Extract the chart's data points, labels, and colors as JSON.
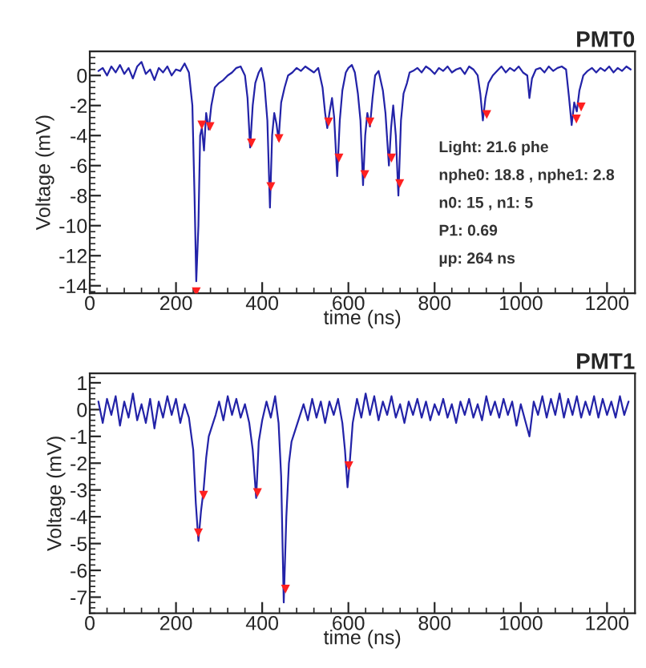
{
  "chart_data": [
    {
      "type": "line",
      "title": "PMT0",
      "xlabel": "time (ns)",
      "ylabel": "Voltage (mV)",
      "xlim": [
        0,
        1265
      ],
      "ylim": [
        -14.5,
        1.6
      ],
      "xticks": [
        0,
        200,
        400,
        600,
        800,
        1000,
        1200
      ],
      "yticks": [
        -14,
        -12,
        -10,
        -8,
        -6,
        -4,
        -2,
        0
      ],
      "grid": false,
      "legend": false,
      "annotations": [
        "Light: 21.6 phe",
        "nphe0: 18.8 , nphe1: 2.8",
        "n0: 15 , n1: 5",
        "P1: 0.69",
        "µp: 264 ns"
      ],
      "series": [
        {
          "color": "#2323a8",
          "marker": "none",
          "line_style": "solid",
          "x": [
            20,
            30,
            40,
            50,
            60,
            70,
            80,
            90,
            100,
            110,
            120,
            130,
            140,
            150,
            160,
            170,
            180,
            190,
            200,
            210,
            220,
            230,
            238,
            243,
            247,
            252,
            256,
            260,
            265,
            270,
            276,
            282,
            290,
            300,
            310,
            320,
            330,
            340,
            350,
            360,
            366,
            372,
            378,
            384,
            392,
            398,
            405,
            412,
            418,
            423,
            428,
            433,
            438,
            444,
            452,
            460,
            470,
            480,
            490,
            500,
            510,
            520,
            530,
            540,
            546,
            551,
            556,
            562,
            567,
            574,
            580,
            586,
            594,
            600,
            608,
            615,
            622,
            628,
            634,
            639,
            644,
            650,
            656,
            662,
            670,
            680,
            686,
            694,
            699,
            704,
            710,
            716,
            722,
            728,
            736,
            742,
            750,
            760,
            770,
            780,
            790,
            800,
            810,
            820,
            830,
            840,
            850,
            860,
            870,
            880,
            890,
            900,
            906,
            912,
            918,
            925,
            935,
            945,
            955,
            965,
            975,
            985,
            995,
            1005,
            1015,
            1020,
            1026,
            1035,
            1045,
            1055,
            1065,
            1075,
            1085,
            1095,
            1105,
            1112,
            1118,
            1124,
            1130,
            1136,
            1145,
            1155,
            1165,
            1175,
            1185,
            1195,
            1205,
            1215,
            1225,
            1235,
            1245,
            1255
          ],
          "values": [
            0.3,
            0.5,
            0.0,
            0.6,
            0.2,
            0.7,
            0.1,
            0.5,
            -0.2,
            0.6,
            0.9,
            0.1,
            0.4,
            -0.3,
            0.5,
            0.2,
            0.6,
            0.0,
            0.4,
            0.3,
            0.8,
            0.2,
            -2,
            -8,
            -13.7,
            -10,
            -4,
            -3.5,
            -5,
            -2.5,
            -3.6,
            -2,
            -0.8,
            -0.5,
            -0.3,
            0,
            0.2,
            0.5,
            0.6,
            0,
            -1.5,
            -4.8,
            -2,
            -0.5,
            0.2,
            0.5,
            -0.5,
            -3,
            -8.8,
            -4,
            -2.5,
            -3.2,
            -4.3,
            -1.8,
            -0.8,
            0,
            0.2,
            0.5,
            0.3,
            0.6,
            0.4,
            0.2,
            0.5,
            -0.8,
            -2.5,
            -3.5,
            -2.5,
            -1.5,
            -2.8,
            -6.7,
            -3,
            -1,
            0.2,
            0.5,
            0.7,
            0.2,
            -1.2,
            -3,
            -7.3,
            -4,
            -2.5,
            -3.4,
            -1.5,
            0,
            0.3,
            -1,
            -2.5,
            -6.0,
            -3.5,
            -2,
            -4,
            -8.0,
            -3,
            -1.2,
            -0.5,
            0.2,
            0.3,
            0.5,
            0.2,
            0.6,
            0.4,
            0.1,
            0.5,
            0.3,
            0.6,
            0.2,
            0.4,
            0.5,
            0.1,
            0.6,
            0.4,
            0,
            -1.2,
            -3.0,
            -1.5,
            -0.5,
            0,
            0.3,
            0.6,
            0.2,
            0.5,
            0.3,
            0.6,
            0.2,
            0.0,
            -1.5,
            -0.2,
            0.4,
            0.5,
            0.2,
            0.6,
            0.3,
            0.5,
            0.6,
            0.4,
            -1.5,
            -3.3,
            -1.8,
            -2.4,
            -1,
            0,
            0.3,
            0.5,
            0.2,
            0.5,
            0.3,
            0.6,
            0.2,
            0.5,
            0.3,
            0.6,
            0.4
          ]
        },
        {
          "type": "scatter",
          "color": "#ff2020",
          "marker": "triangle",
          "x": [
            247,
            260,
            279,
            375,
            420,
            439,
            554,
            578,
            638,
            650,
            700,
            719,
            921,
            1129,
            1140
          ],
          "values": [
            -14.4,
            -3.3,
            -3.4,
            -4.5,
            -7.4,
            -4.2,
            -3.1,
            -5.5,
            -6.6,
            -3.1,
            -5.5,
            -7.2,
            -2.6,
            -2.9,
            -2.1
          ]
        }
      ]
    },
    {
      "type": "line",
      "title": "PMT1",
      "xlabel": "time (ns)",
      "ylabel": "Voltage (mV)",
      "xlim": [
        0,
        1265
      ],
      "ylim": [
        -7.6,
        1.35
      ],
      "xticks": [
        0,
        200,
        400,
        600,
        800,
        1000,
        1200
      ],
      "yticks": [
        -7,
        -6,
        -5,
        -4,
        -3,
        -2,
        -1,
        0,
        1
      ],
      "grid": false,
      "legend": false,
      "series": [
        {
          "color": "#2323a8",
          "marker": "none",
          "line_style": "solid",
          "x": [
            20,
            30,
            40,
            50,
            60,
            70,
            80,
            90,
            100,
            110,
            120,
            130,
            140,
            150,
            160,
            170,
            180,
            190,
            200,
            210,
            220,
            230,
            240,
            246,
            252,
            258,
            264,
            270,
            276,
            284,
            292,
            300,
            310,
            320,
            330,
            340,
            350,
            360,
            370,
            378,
            386,
            392,
            400,
            410,
            420,
            430,
            438,
            444,
            450,
            456,
            462,
            468,
            476,
            486,
            496,
            506,
            516,
            526,
            536,
            546,
            556,
            566,
            576,
            586,
            592,
            598,
            604,
            610,
            620,
            630,
            640,
            650,
            660,
            670,
            680,
            690,
            700,
            710,
            720,
            730,
            740,
            750,
            760,
            770,
            780,
            790,
            800,
            810,
            820,
            830,
            840,
            850,
            860,
            870,
            880,
            890,
            900,
            910,
            920,
            930,
            940,
            950,
            960,
            970,
            980,
            990,
            1000,
            1010,
            1020,
            1030,
            1040,
            1050,
            1060,
            1070,
            1080,
            1090,
            1100,
            1110,
            1120,
            1130,
            1140,
            1150,
            1160,
            1170,
            1180,
            1190,
            1200,
            1210,
            1220,
            1230,
            1240,
            1250
          ],
          "values": [
            0.3,
            -0.5,
            0.4,
            -0.2,
            0.5,
            -0.6,
            0.3,
            -0.3,
            0.6,
            -0.4,
            0.2,
            -0.5,
            0.4,
            -0.7,
            0.3,
            -0.3,
            0.5,
            -0.2,
            0.4,
            -0.5,
            0.2,
            -0.3,
            -1.5,
            -3.5,
            -4.9,
            -3.8,
            -3.0,
            -1.8,
            -1.0,
            -0.6,
            -0.2,
            0.3,
            -0.4,
            0.5,
            -0.2,
            0.4,
            -0.3,
            0.2,
            -0.5,
            -1.5,
            -3.3,
            -1.2,
            -0.4,
            0.3,
            -0.3,
            0.5,
            -0.5,
            -2.5,
            -7.2,
            -4,
            -2.0,
            -1.2,
            -0.8,
            -0.3,
            0.2,
            -0.4,
            0.4,
            -0.3,
            0.3,
            -0.5,
            0.3,
            -0.2,
            0.4,
            -0.5,
            -1.5,
            -2.9,
            -1.8,
            -0.5,
            0.4,
            -0.3,
            0.6,
            -0.2,
            0.5,
            -0.4,
            0.3,
            -0.2,
            0.5,
            -0.3,
            0.2,
            -0.5,
            0.3,
            -0.2,
            0.4,
            -0.3,
            0.3,
            -0.4,
            0.2,
            -0.2,
            0.4,
            -0.3,
            0.2,
            -0.5,
            0.3,
            -0.2,
            0.4,
            -0.3,
            0.2,
            -0.4,
            0.5,
            -0.2,
            0.3,
            -0.3,
            0.4,
            -0.2,
            0.3,
            -0.6,
            0.2,
            -0.4,
            -1.0,
            0.3,
            -0.2,
            0.5,
            -0.3,
            0.4,
            -0.2,
            0.6,
            -0.3,
            0.4,
            -0.2,
            0.5,
            -0.3,
            0.3,
            -0.2,
            0.5,
            -0.3,
            0.4,
            -0.2,
            0.3,
            -0.3,
            0.5,
            -0.2,
            0.3
          ]
        },
        {
          "type": "scatter",
          "color": "#ff2020",
          "marker": "triangle",
          "x": [
            252,
            264,
            389,
            454,
            601
          ],
          "values": [
            -4.6,
            -3.2,
            -3.1,
            -6.7,
            -2.1
          ]
        }
      ]
    }
  ]
}
